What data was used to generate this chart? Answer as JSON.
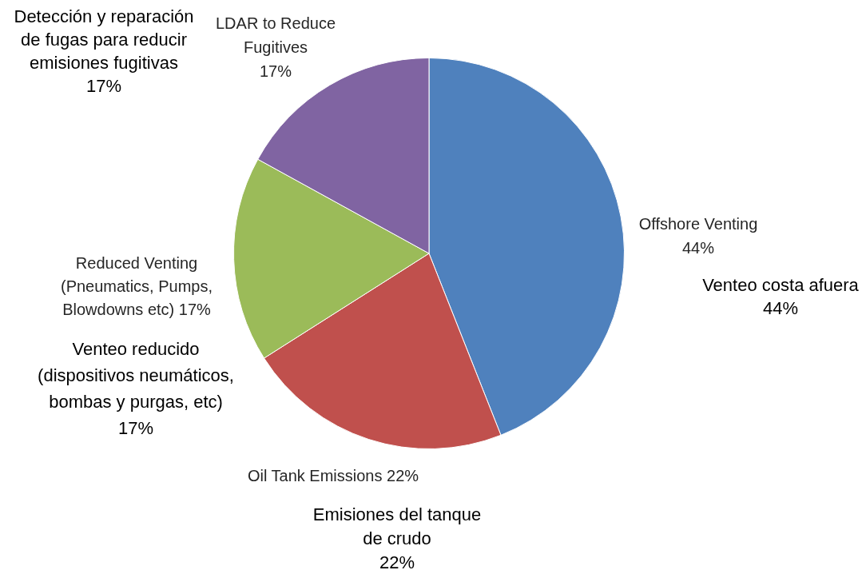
{
  "chart_data": {
    "type": "pie",
    "categories": [
      "Offshore Venting",
      "Oil Tank Emissions",
      "Reduced Venting (Pneumatics, Pumps, Blowdowns etc)",
      "LDAR to Reduce Fugitives"
    ],
    "values": [
      44,
      22,
      17,
      17
    ],
    "value_labels": [
      "44%",
      "22%",
      "17%",
      "17%"
    ],
    "colors": [
      "#4f81bd",
      "#c0504d",
      "#9bbb59",
      "#8064a2"
    ],
    "annotations": [
      "Venteo costa afuera 44%",
      "Emisiones del tanque de crudo 22%",
      "Venteo reducido (dispositivos neumáticos, bombas y purgas, etc) 17%",
      "Detección y reparación de fugas para reducir emisiones fugitivas 17%"
    ]
  }
}
